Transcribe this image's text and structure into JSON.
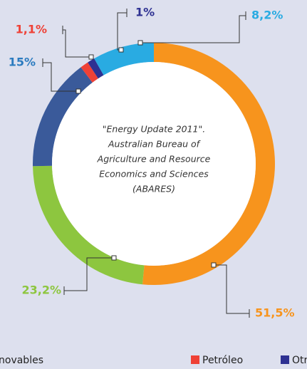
{
  "chart_data": {
    "type": "pie",
    "values": [
      51.5,
      23.2,
      15,
      1.1,
      1,
      8.2
    ],
    "value_labels": [
      "51,5%",
      "23,2%",
      "15%",
      "1,1%",
      "1%",
      "8,2%"
    ],
    "colors": [
      "#f7941d",
      "#8dc63f",
      "#3a5a9a",
      "#ef4136",
      "#2e3192",
      "#29abe2"
    ],
    "label_colors": [
      "#f7941d",
      "#8dc63f",
      "#2b7bbf",
      "#ef4136",
      "#2e3192",
      "#29abe2"
    ],
    "annotation": [
      "\"Energy Update 2011\".",
      "Australian Bureau of",
      "Agriculture and Resource",
      "Economics and Sciences",
      "(ABARES)"
    ],
    "legend": [
      {
        "name": "novables"
      },
      {
        "name": "Petróleo",
        "color": "#ef4136"
      },
      {
        "name": "Otros",
        "color": "#2e3192"
      }
    ]
  }
}
